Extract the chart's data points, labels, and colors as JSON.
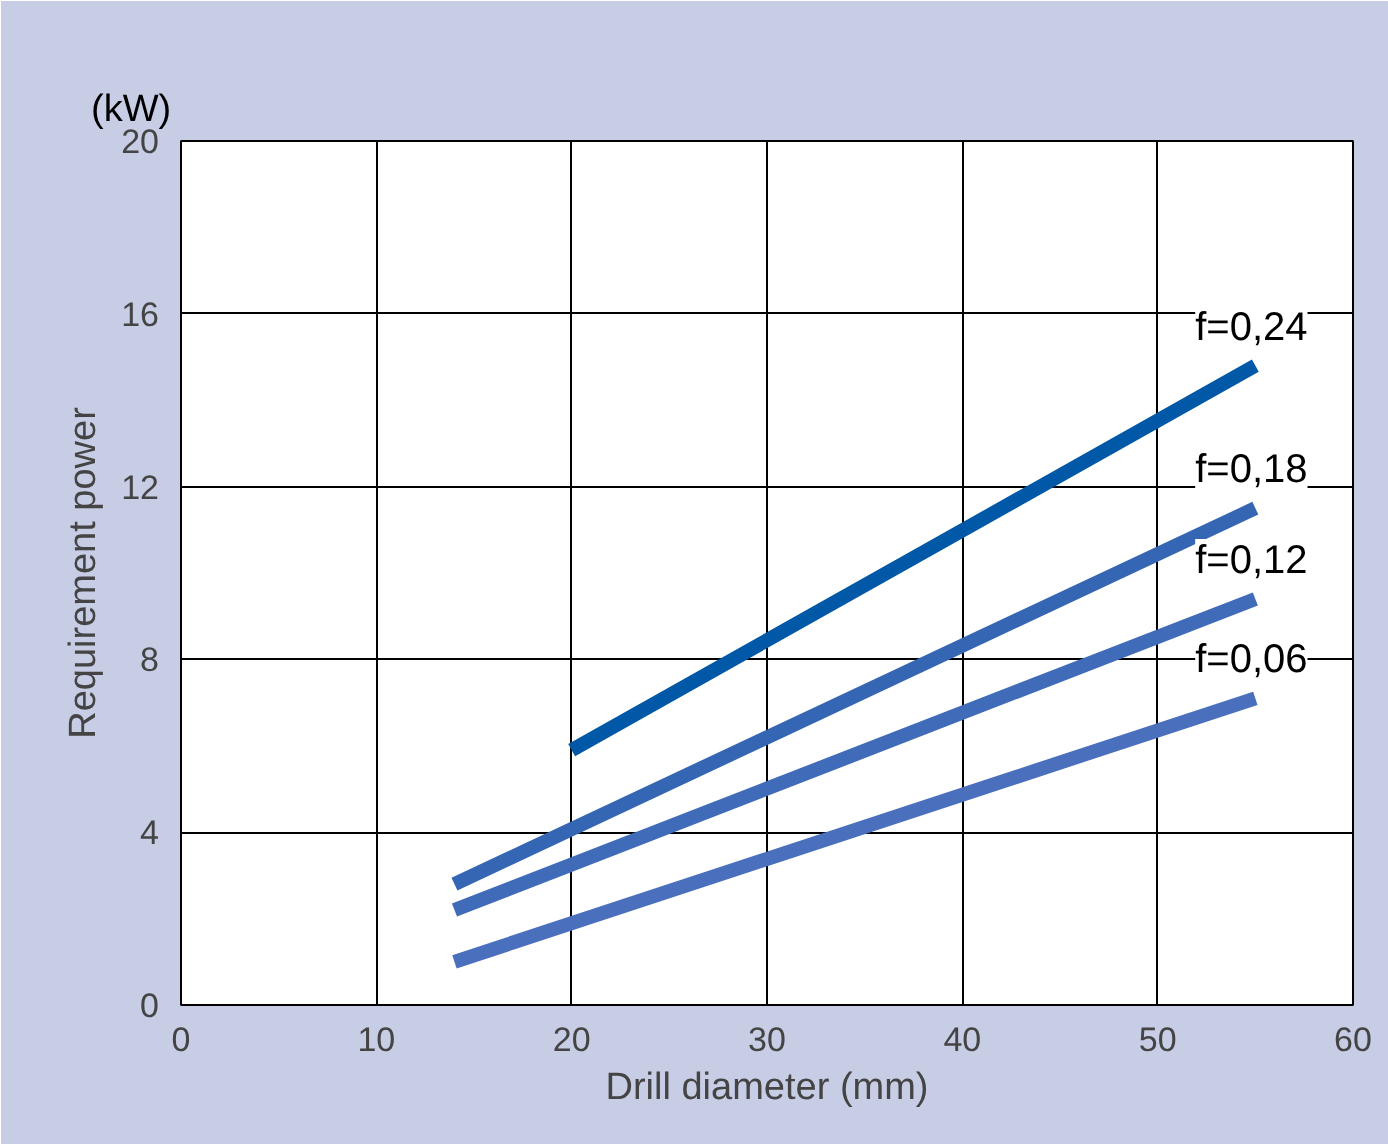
{
  "chart_data": {
    "type": "line",
    "xlabel": "Drill diameter (mm)",
    "ylabel": "Requirement power",
    "annotations": [
      "(kW)"
    ],
    "xlim": [
      0,
      60
    ],
    "ylim": [
      0,
      20
    ],
    "xticks": [
      0,
      10,
      20,
      30,
      40,
      50,
      60
    ],
    "yticks": [
      0,
      4,
      8,
      12,
      16,
      20
    ],
    "grid": true,
    "marker": "none",
    "line_style": "solid",
    "series": [
      {
        "name": "f=0,24",
        "color": "#0058a6",
        "x": [
          20,
          55
        ],
        "values": [
          5.9,
          14.8
        ]
      },
      {
        "name": "f=0,18",
        "color": "#3566b3",
        "x": [
          14,
          55
        ],
        "values": [
          2.8,
          11.5
        ]
      },
      {
        "name": "f=0,12",
        "color": "#3f6bb8",
        "x": [
          14,
          55
        ],
        "values": [
          2.2,
          9.4
        ]
      },
      {
        "name": "f=0,06",
        "color": "#4a6fbd",
        "x": [
          14,
          55
        ],
        "values": [
          1.0,
          7.1
        ]
      }
    ]
  }
}
